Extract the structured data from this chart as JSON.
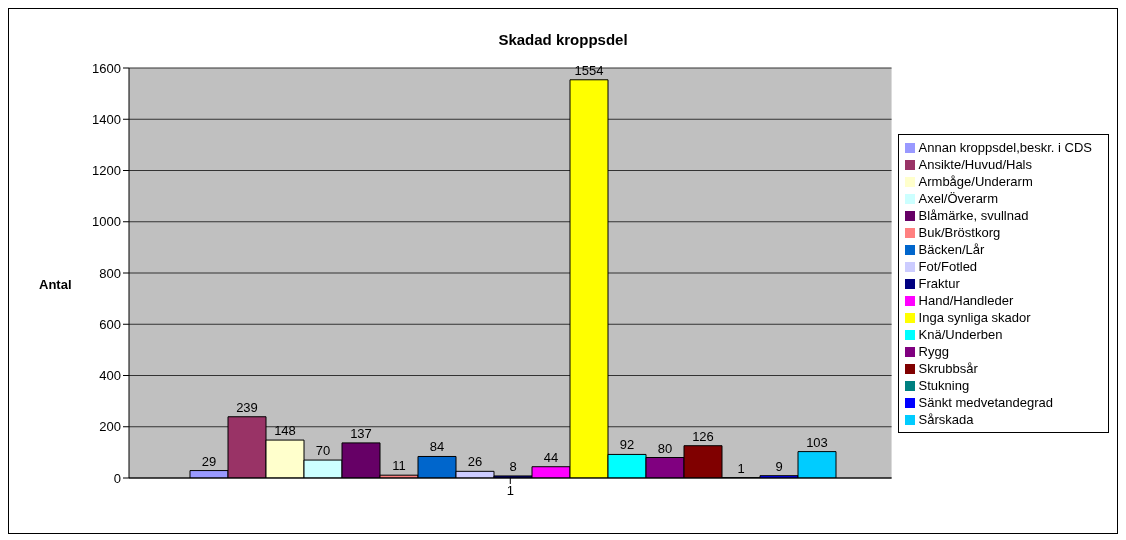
{
  "chart_data": {
    "type": "bar",
    "title": "Skadad kroppsdel",
    "ylabel": "Antal",
    "categories": [
      "1"
    ],
    "series": [
      {
        "name": "Annan kroppsdel,beskr. i CDS",
        "color": "#9999ff",
        "values": [
          29
        ]
      },
      {
        "name": "Ansikte/Huvud/Hals",
        "color": "#993366",
        "values": [
          239
        ]
      },
      {
        "name": "Armbåge/Underarm",
        "color": "#ffffcc",
        "values": [
          148
        ]
      },
      {
        "name": "Axel/Överarm",
        "color": "#ccffff",
        "values": [
          70
        ]
      },
      {
        "name": "Blåmärke, svullnad",
        "color": "#660066",
        "values": [
          137
        ]
      },
      {
        "name": "Buk/Bröstkorg",
        "color": "#ff8080",
        "values": [
          11
        ]
      },
      {
        "name": "Bäcken/Lår",
        "color": "#0066cc",
        "values": [
          84
        ]
      },
      {
        "name": "Fot/Fotled",
        "color": "#ccccff",
        "values": [
          26
        ]
      },
      {
        "name": "Fraktur",
        "color": "#000080",
        "values": [
          8
        ]
      },
      {
        "name": "Hand/Handleder",
        "color": "#ff00ff",
        "values": [
          44
        ]
      },
      {
        "name": "Inga synliga skador",
        "color": "#ffff00",
        "values": [
          1554
        ]
      },
      {
        "name": "Knä/Underben",
        "color": "#00ffff",
        "values": [
          92
        ]
      },
      {
        "name": "Rygg",
        "color": "#800080",
        "values": [
          80
        ]
      },
      {
        "name": "Skrubbsår",
        "color": "#800000",
        "values": [
          126
        ]
      },
      {
        "name": "Stukning",
        "color": "#008080",
        "values": [
          1
        ]
      },
      {
        "name": "Sänkt medvetandegrad",
        "color": "#0000ff",
        "values": [
          9
        ]
      },
      {
        "name": "Sårskada",
        "color": "#00ccff",
        "values": [
          103
        ]
      }
    ],
    "ylim": [
      0,
      1600
    ],
    "yticks": [
      0,
      200,
      400,
      600,
      800,
      1000,
      1200,
      1400,
      1600
    ],
    "grid": "y",
    "legend": "right",
    "data_labels": true
  }
}
